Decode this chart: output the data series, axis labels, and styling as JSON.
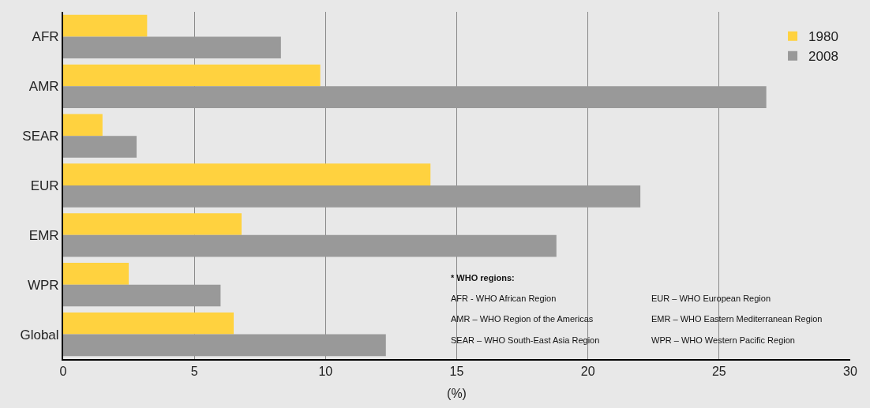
{
  "chart_data": {
    "type": "bar",
    "orientation": "horizontal",
    "xlabel": "(%)",
    "categories": [
      "AFR",
      "AMR",
      "SEAR",
      "EUR",
      "EMR",
      "WPR",
      "Global"
    ],
    "series": [
      {
        "name": "1980",
        "color": "#ffd23f",
        "values": [
          3.2,
          9.8,
          1.5,
          14.0,
          6.8,
          2.5,
          6.5
        ]
      },
      {
        "name": "2008",
        "color": "#999999",
        "values": [
          8.3,
          26.8,
          2.8,
          22.0,
          18.8,
          6.0,
          12.3
        ]
      }
    ],
    "xlim": [
      0,
      30
    ],
    "xticks": [
      0,
      5,
      10,
      15,
      20,
      25,
      30
    ],
    "grid": "x",
    "legend": "top right",
    "annotations": [
      "* WHO regions:",
      "AFR - WHO African Region",
      "AMR – WHO Region of the Americas",
      "SEAR – WHO South-East Asia Region",
      "EUR – WHO European Region",
      "EMR – WHO Eastern Mediterranean Region",
      "WPR – WHO Western Pacific Region"
    ]
  }
}
